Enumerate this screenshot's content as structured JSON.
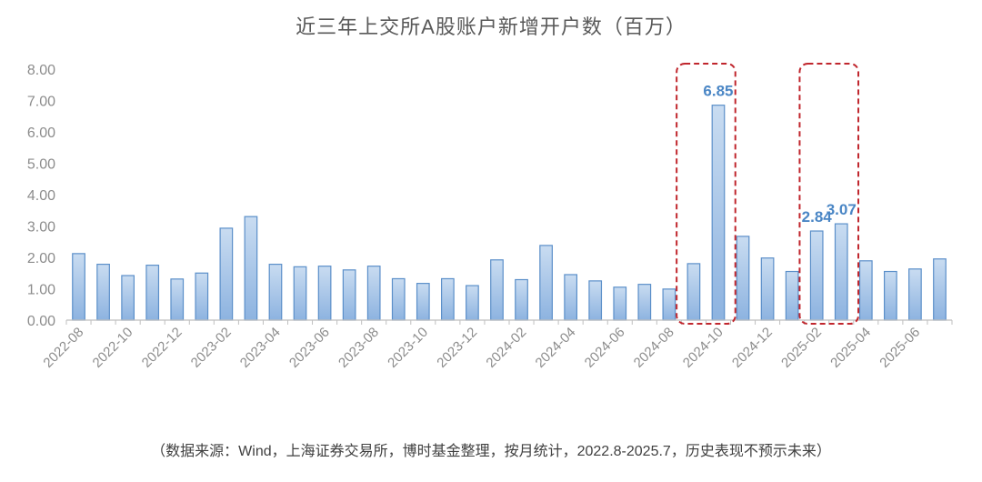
{
  "chart_data": {
    "type": "bar",
    "title": "近三年上交所A股账户新增开户数（百万）",
    "categories": [
      "2022-08",
      "2022-09",
      "2022-10",
      "2022-11",
      "2022-12",
      "2023-01",
      "2023-02",
      "2023-03",
      "2023-04",
      "2023-05",
      "2023-06",
      "2023-07",
      "2023-08",
      "2023-09",
      "2023-10",
      "2023-11",
      "2023-12",
      "2024-01",
      "2024-02",
      "2024-03",
      "2024-04",
      "2024-05",
      "2024-06",
      "2024-07",
      "2024-08",
      "2024-09",
      "2024-10",
      "2024-11",
      "2024-12",
      "2025-01",
      "2025-02",
      "2025-03",
      "2025-04",
      "2025-05",
      "2025-06",
      "2025-07"
    ],
    "x_tick_labels": [
      "2022-08",
      "2022-10",
      "2022-12",
      "2023-02",
      "2023-04",
      "2023-06",
      "2023-08",
      "2023-10",
      "2023-12",
      "2024-02",
      "2024-04",
      "2024-06",
      "2024-08",
      "2024-10",
      "2024-12",
      "2025-02",
      "2025-04",
      "2025-06"
    ],
    "values": [
      2.12,
      1.78,
      1.42,
      1.75,
      1.31,
      1.5,
      2.93,
      3.3,
      1.78,
      1.7,
      1.72,
      1.6,
      1.72,
      1.32,
      1.17,
      1.32,
      1.1,
      1.92,
      1.29,
      2.38,
      1.45,
      1.25,
      1.05,
      1.14,
      0.99,
      1.8,
      6.85,
      2.67,
      1.98,
      1.55,
      2.84,
      3.07,
      1.89,
      1.55,
      1.63,
      1.95
    ],
    "data_labels": [
      {
        "category": "2024-10",
        "text": "6.85"
      },
      {
        "category": "2025-02",
        "text": "2.84"
      },
      {
        "category": "2025-03",
        "text": "3.07"
      }
    ],
    "y_tick_labels": [
      "0.00",
      "1.00",
      "2.00",
      "3.00",
      "4.00",
      "5.00",
      "6.00",
      "7.00",
      "8.00"
    ],
    "ylim": [
      0,
      8
    ],
    "grid": false,
    "legend": "none",
    "highlight_boxes": [
      {
        "from": "2024-09",
        "to": "2024-10"
      },
      {
        "from": "2025-02",
        "to": "2025-03"
      }
    ],
    "colors": {
      "bar_fill_top": "#c9dcf1",
      "bar_fill_bottom": "#8db3e0",
      "bar_stroke": "#5b8fc9",
      "label": "#4a86c5",
      "highlight": "#c0262d",
      "axis": "#bfbfbf"
    }
  },
  "footer": {
    "note": "（数据来源：Wind，上海证券交易所，博时基金整理，按月统计，2022.8-2025.7，历史表现不预示未来）"
  }
}
